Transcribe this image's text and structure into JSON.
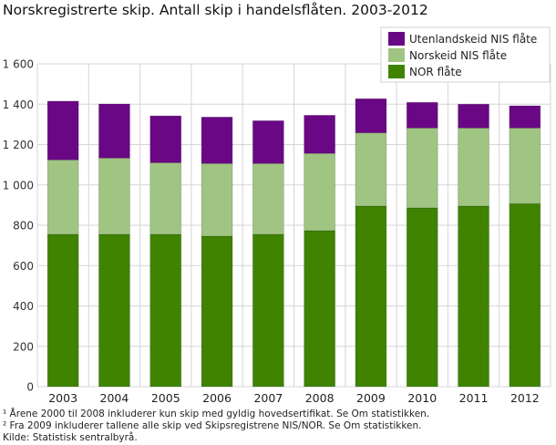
{
  "chart_data": {
    "type": "bar",
    "stacked": true,
    "title": "Norskregistrerte skip. Antall skip i handelsflåten. 2003-2012",
    "xlabel": "",
    "ylabel": "",
    "categories": [
      "2003",
      "2004",
      "2005",
      "2006",
      "2007",
      "2008",
      "2009",
      "2010",
      "2011",
      "2012"
    ],
    "ylim": [
      0,
      1600
    ],
    "yticks": [
      0,
      200,
      400,
      600,
      800,
      1000,
      1200,
      1400,
      1600
    ],
    "ytick_labels": [
      "0",
      "200",
      "400",
      "600",
      "800",
      "1 000",
      "1 200",
      "1 400",
      "1 600"
    ],
    "grid": true,
    "legend_position": "top-right",
    "series": [
      {
        "name": "NOR flåte",
        "color": "#3f8300",
        "values": [
          755,
          755,
          755,
          746,
          755,
          773,
          895,
          886,
          895,
          907
        ]
      },
      {
        "name": "Norskeid NIS flåte",
        "color": "#a0c482",
        "values": [
          369,
          378,
          355,
          360,
          351,
          383,
          363,
          396,
          387,
          375
        ]
      },
      {
        "name": "Utenlandskeid NIS flåte",
        "color": "#6a0785",
        "values": [
          291,
          268,
          232,
          230,
          212,
          189,
          169,
          127,
          118,
          110
        ]
      }
    ]
  },
  "footnotes": [
    "¹ Årene 2000 til 2008 inkluderer kun skip med gyldig hovedsertifikat. Se Om statistikken.",
    "² Fra 2009 inkluderer tallene alle skip ved Skipsregistrene NIS/NOR. Se Om statistikken.",
    "Kilde: Statistisk sentralbyrå."
  ]
}
